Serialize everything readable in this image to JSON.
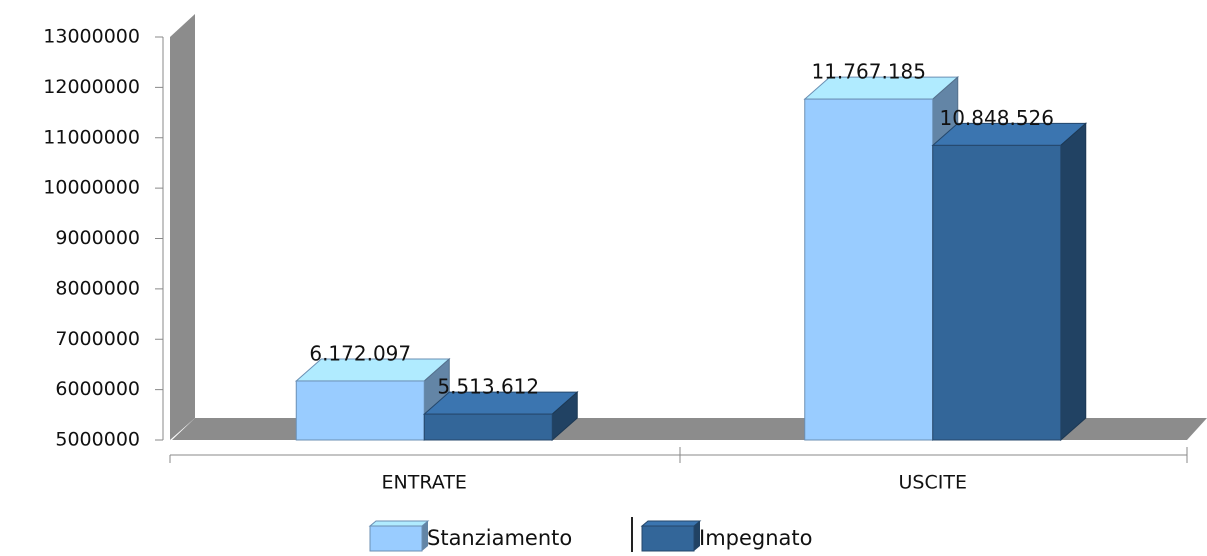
{
  "chart_data": {
    "type": "bar3d",
    "categories": [
      "ENTRATE",
      "USCITE"
    ],
    "series": [
      {
        "name": "Stanziamento",
        "color": "#99ccff",
        "values": [
          6172097,
          11767185
        ],
        "value_labels": [
          "6.172.097",
          "11.767.185"
        ]
      },
      {
        "name": "Impegnato",
        "color": "#336699",
        "values": [
          5513612,
          10848526
        ],
        "value_labels": [
          "5.513.612",
          "10.848.526"
        ]
      }
    ],
    "ylim": [
      5000000,
      13000000
    ],
    "yticks": [
      5000000,
      6000000,
      7000000,
      8000000,
      9000000,
      10000000,
      11000000,
      12000000,
      13000000
    ],
    "legend": "bottom"
  }
}
